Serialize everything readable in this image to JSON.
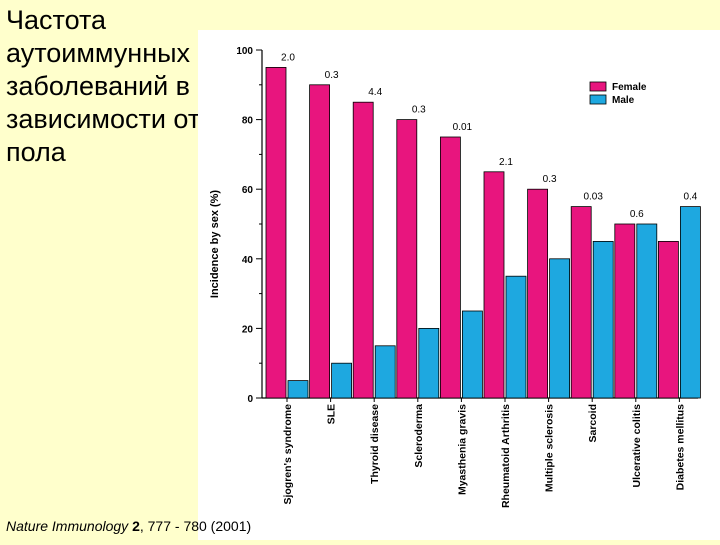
{
  "slide": {
    "title": "Частота\nаутоиммунных\nзаболеваний в\nзависимости от\nпола",
    "citation": {
      "journal": "Nature Immunology",
      "volume": "2",
      "pages": ", 777 - 780 (2001)"
    }
  },
  "chart_data": {
    "type": "bar",
    "title": "",
    "xlabel": "",
    "ylabel": "Incidence by sex (%)",
    "ylim": [
      0,
      100
    ],
    "yticks": [
      0,
      20,
      40,
      60,
      80,
      100
    ],
    "grid": false,
    "legend_position": "top-right",
    "categories": [
      "Sjogren's syndrome",
      "SLE",
      "Thyroid disease",
      "Scleroderma",
      "Myasthenia gravis",
      "Rheumatoid Arthritis",
      "Multiple sclerosis",
      "Sarcoid",
      "Ulcerative colitis",
      "Diabetes mellitus"
    ],
    "series": [
      {
        "name": "Female",
        "color": "#e8157e",
        "values": [
          95,
          90,
          85,
          80,
          75,
          65,
          60,
          55,
          50,
          45
        ]
      },
      {
        "name": "Male",
        "color": "#1ea8e0",
        "values": [
          5,
          10,
          15,
          20,
          25,
          35,
          40,
          45,
          50,
          55
        ]
      }
    ],
    "annotations": [
      "2.0",
      "0.3",
      "4.4",
      "0.3",
      "0.01",
      "2.1",
      "0.3",
      "0.03",
      "0.6",
      "0.4"
    ]
  }
}
